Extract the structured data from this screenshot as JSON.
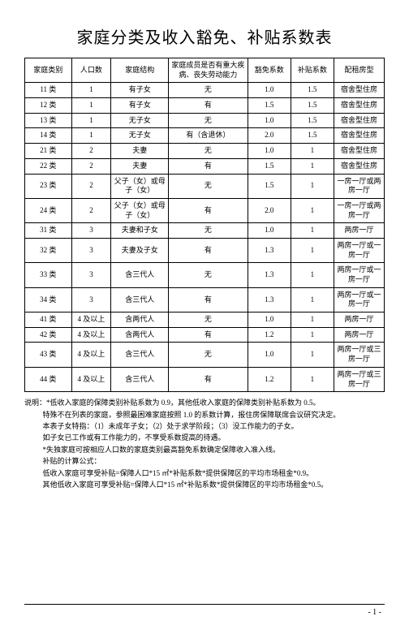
{
  "title": "家庭分类及收入豁免、补贴系数表",
  "columns": [
    "家庭类别",
    "人口数",
    "家庭结构",
    "家庭成员是否有重大疾病、丧失劳动能力",
    "豁免系数",
    "补贴系数",
    "配租房型"
  ],
  "col_widths": [
    "13%",
    "11%",
    "16%",
    "22%",
    "12%",
    "12%",
    "14%"
  ],
  "rows": [
    {
      "c": [
        "11 类",
        "1",
        "有子女",
        "无",
        "1.0",
        "1.5",
        "宿舍型住房"
      ]
    },
    {
      "c": [
        "12 类",
        "1",
        "有子女",
        "有",
        "1.5",
        "1.5",
        "宿舍型住房"
      ]
    },
    {
      "c": [
        "13 类",
        "1",
        "无子女",
        "无",
        "1.0",
        "1.5",
        "宿舍型住房"
      ]
    },
    {
      "c": [
        "14 类",
        "1",
        "无子女",
        "有（含退休）",
        "2.0",
        "1.5",
        "宿舍型住房"
      ]
    },
    {
      "c": [
        "21 类",
        "2",
        "夫妻",
        "无",
        "1.0",
        "1",
        "宿舍型住房"
      ]
    },
    {
      "c": [
        "22 类",
        "2",
        "夫妻",
        "有",
        "1.5",
        "1",
        "宿舍型住房"
      ]
    },
    {
      "c": [
        "23 类",
        "2",
        "父子（女）或母子（女）",
        "无",
        "1.5",
        "1",
        "一房一厅或两房一厅"
      ]
    },
    {
      "c": [
        "24 类",
        "2",
        "父子（女）或母子（女）",
        "有",
        "2.0",
        "1",
        "一房一厅或两房一厅"
      ]
    },
    {
      "c": [
        "31 类",
        "3",
        "夫妻和子女",
        "无",
        "1.0",
        "1",
        "两房一厅"
      ]
    },
    {
      "c": [
        "32 类",
        "3",
        "夫妻及子女",
        "有",
        "1.3",
        "1",
        "两房一厅或一房一厅"
      ]
    },
    {
      "c": [
        "33 类",
        "3",
        "含三代人",
        "无",
        "1.3",
        "1",
        "两房一厅或一房一厅"
      ]
    },
    {
      "c": [
        "34 类",
        "3",
        "含三代人",
        "有",
        "1.3",
        "1",
        "两房一厅或一房一厅"
      ]
    },
    {
      "c": [
        "41 类",
        "4 及以上",
        "含两代人",
        "无",
        "1.0",
        "1",
        "两房一厅"
      ]
    },
    {
      "c": [
        "42 类",
        "4 及以上",
        "含两代人",
        "有",
        "1.2",
        "1",
        "两房一厅"
      ]
    },
    {
      "c": [
        "43 类",
        "4 及以上",
        "含三代人",
        "无",
        "1.0",
        "1",
        "两房一厅或三房一厅"
      ]
    },
    {
      "c": [
        "44 类",
        "4 及以上",
        "含三代人",
        "有",
        "1.2",
        "1",
        "两房一厅或三房一厅"
      ]
    }
  ],
  "notes": [
    {
      "cls": "indent1",
      "t": "说明：*低收入家庭的保障类别补贴系数为 0.9，其他低收入家庭的保障类别补贴系数为 0.5。"
    },
    {
      "cls": "indent2",
      "t": "特殊不在列表的家庭，参照最困难家庭按照 1.0 的系数计算，报住房保障联席会议研究决定。"
    },
    {
      "cls": "indent2",
      "t": "本表子女特指：（1）未成年子女；（2）处于求学阶段；（3）没工作能力的子女。"
    },
    {
      "cls": "indent2",
      "t": "如子女已工作或有工作能力的，不享受系数提高的待遇。"
    },
    {
      "cls": "indent2",
      "t": "*失独家庭可按相应人口数的家庭类别最高豁免系数确定保障收入准入线。"
    },
    {
      "cls": "indent2",
      "t": "补贴的计算公式："
    },
    {
      "cls": "indent2",
      "t": "低收入家庭可享受补贴=保障人口*15 ㎡*补贴系数*提供保障区的平均市场租金*0.9。"
    },
    {
      "cls": "indent2",
      "t": "其他低收入家庭可享受补贴=保障人口*15 ㎡*补贴系数*提供保障区的平均市场租金*0.5。"
    }
  ],
  "page_number": "- 1 -",
  "style": {
    "title_fontsize": 20,
    "cell_fontsize": 9,
    "notes_fontsize": 9,
    "border_color": "#000000",
    "bg_color": "#ffffff",
    "text_color": "#000000"
  }
}
